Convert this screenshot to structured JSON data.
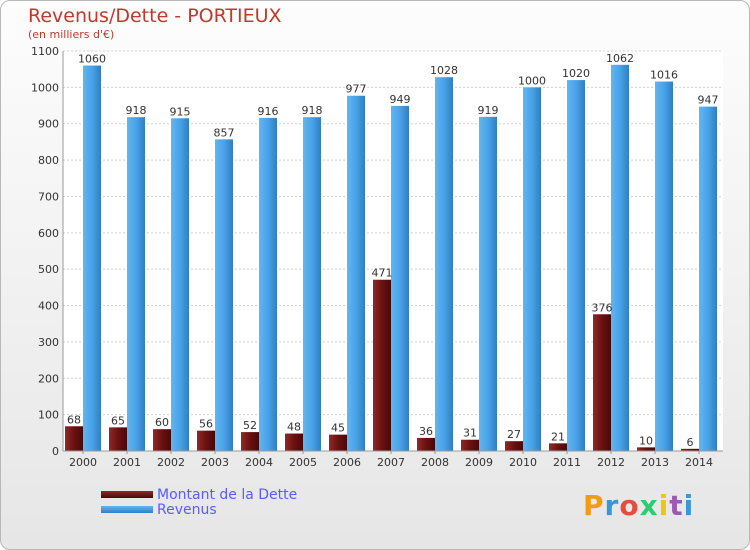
{
  "chart_data": {
    "type": "bar",
    "title": "Revenus/Dette - PORTIEUX",
    "subtitle": "(en milliers d'€)",
    "categories": [
      "2000",
      "2001",
      "2002",
      "2003",
      "2004",
      "2005",
      "2006",
      "2007",
      "2008",
      "2009",
      "2010",
      "2011",
      "2012",
      "2013",
      "2014"
    ],
    "series": [
      {
        "name": "Montant de la Dette",
        "color": "#7a1c1c",
        "values": [
          68,
          65,
          60,
          56,
          52,
          48,
          45,
          471,
          36,
          31,
          27,
          21,
          376,
          10,
          6
        ]
      },
      {
        "name": "Revenus",
        "color": "#4aa3e8",
        "values": [
          1060,
          918,
          915,
          857,
          916,
          918,
          977,
          949,
          1028,
          919,
          1000,
          1020,
          1062,
          1016,
          947
        ]
      }
    ],
    "ylim": [
      0,
      1100
    ],
    "yticks": [
      0,
      100,
      200,
      300,
      400,
      500,
      600,
      700,
      800,
      900,
      1000,
      1100
    ],
    "grid": true,
    "legend": "bottom-left"
  },
  "branding": {
    "logo_letters": [
      "P",
      "r",
      "o",
      "x",
      "i",
      "t",
      "i"
    ],
    "logo_colors": [
      "#f39c12",
      "#3498db",
      "#e74c3c",
      "#2ecc71",
      "#f1c40f",
      "#9b59b6",
      "#3498db"
    ]
  }
}
